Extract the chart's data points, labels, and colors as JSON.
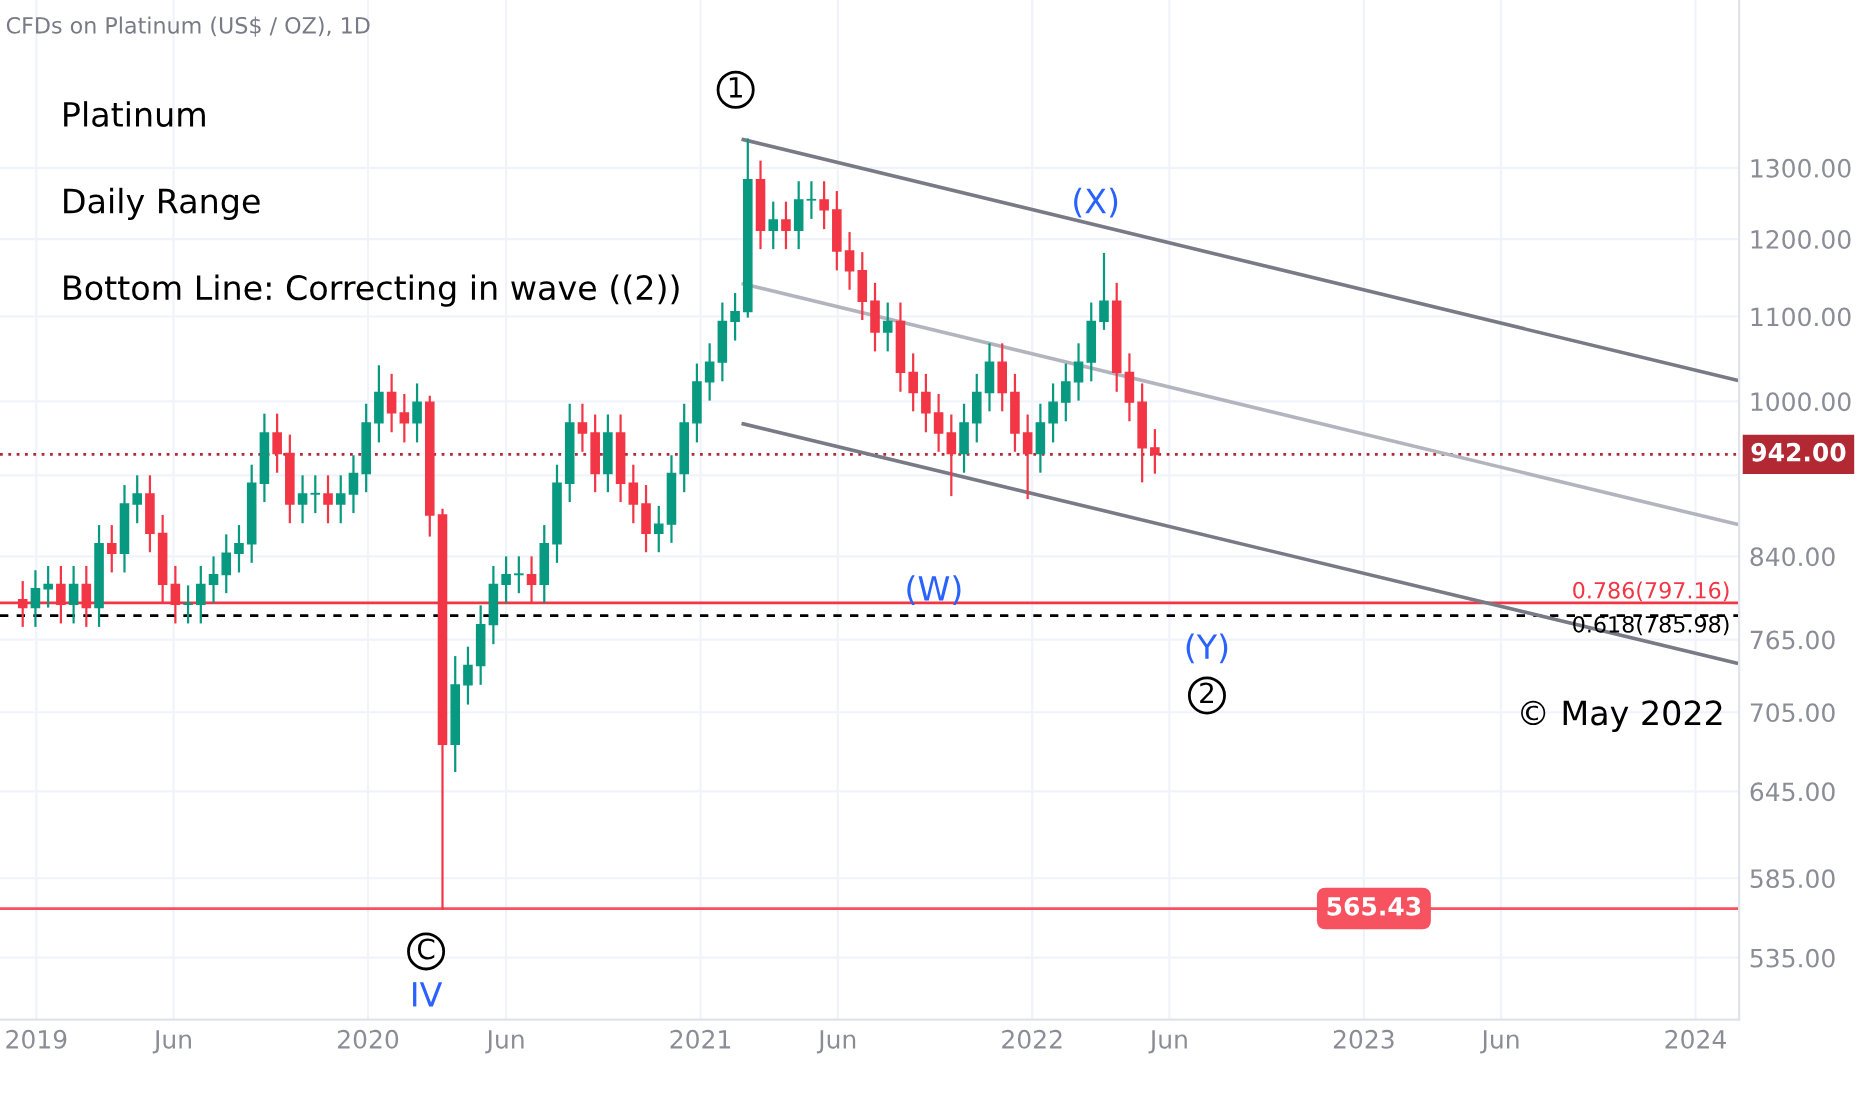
{
  "chart_data": {
    "type": "candlestick",
    "title": "CFDs on Platinum (US$ / OZ), 1D",
    "x": [
      "2018-12-17",
      "2018-12-31",
      "2019-01-14",
      "2019-01-28",
      "2019-02-11",
      "2019-02-25",
      "2019-03-11",
      "2019-03-25",
      "2019-04-08",
      "2019-04-22",
      "2019-05-06",
      "2019-05-20",
      "2019-06-03",
      "2019-06-17",
      "2019-07-01",
      "2019-07-15",
      "2019-07-29",
      "2019-08-12",
      "2019-08-26",
      "2019-09-09",
      "2019-09-23",
      "2019-10-07",
      "2019-10-21",
      "2019-11-04",
      "2019-11-18",
      "2019-12-02",
      "2019-12-16",
      "2019-12-30",
      "2020-01-13",
      "2020-01-27",
      "2020-02-10",
      "2020-02-24",
      "2020-03-09",
      "2020-03-23",
      "2020-04-06",
      "2020-04-20",
      "2020-05-04",
      "2020-05-18",
      "2020-06-01",
      "2020-06-15",
      "2020-06-29",
      "2020-07-13",
      "2020-07-27",
      "2020-08-10",
      "2020-08-24",
      "2020-09-07",
      "2020-09-21",
      "2020-10-05",
      "2020-10-19",
      "2020-11-02",
      "2020-11-16",
      "2020-11-30",
      "2020-12-14",
      "2020-12-28",
      "2021-01-11",
      "2021-01-25",
      "2021-02-08",
      "2021-02-22",
      "2021-03-08",
      "2021-03-22",
      "2021-04-05",
      "2021-04-19",
      "2021-05-03",
      "2021-05-17",
      "2021-05-31",
      "2021-06-14",
      "2021-06-28",
      "2021-07-12",
      "2021-07-26",
      "2021-08-09",
      "2021-08-23",
      "2021-09-06",
      "2021-09-20",
      "2021-10-04",
      "2021-10-18",
      "2021-11-01",
      "2021-11-15",
      "2021-11-29",
      "2021-12-13",
      "2021-12-27",
      "2022-01-10",
      "2022-01-24",
      "2022-02-07",
      "2022-02-21",
      "2022-03-07",
      "2022-03-21",
      "2022-04-04",
      "2022-04-18",
      "2022-05-02",
      "2022-05-16"
    ],
    "ohlc": [
      [
        800,
        816,
        777,
        793
      ],
      [
        793,
        826,
        777,
        810
      ],
      [
        810,
        830,
        794,
        814
      ],
      [
        814,
        830,
        780,
        796
      ],
      [
        796,
        830,
        780,
        814
      ],
      [
        814,
        830,
        777,
        793
      ],
      [
        793,
        869,
        777,
        852
      ],
      [
        852,
        869,
        826,
        843
      ],
      [
        843,
        909,
        826,
        891
      ],
      [
        891,
        919,
        873,
        901
      ],
      [
        901,
        919,
        845,
        862
      ],
      [
        862,
        879,
        798,
        814
      ],
      [
        814,
        830,
        780,
        796
      ],
      [
        796,
        812,
        780,
        796
      ],
      [
        796,
        830,
        780,
        814
      ],
      [
        814,
        839,
        798,
        823
      ],
      [
        823,
        860,
        807,
        843
      ],
      [
        843,
        869,
        826,
        852
      ],
      [
        852,
        930,
        835,
        912
      ],
      [
        912,
        985,
        894,
        965
      ],
      [
        965,
        985,
        924,
        943
      ],
      [
        943,
        962,
        873,
        891
      ],
      [
        891,
        919,
        873,
        901
      ],
      [
        901,
        919,
        883,
        901
      ],
      [
        901,
        919,
        873,
        891
      ],
      [
        891,
        919,
        873,
        901
      ],
      [
        901,
        940,
        883,
        922
      ],
      [
        922,
        996,
        904,
        976
      ],
      [
        976,
        1040,
        956,
        1010
      ],
      [
        1010,
        1030,
        967,
        987
      ],
      [
        987,
        1007,
        956,
        976
      ],
      [
        976,
        1019,
        956,
        999
      ],
      [
        999,
        1005,
        860,
        880
      ],
      [
        880,
        885,
        565.43,
        680
      ],
      [
        680,
        750,
        660,
        727
      ],
      [
        727,
        758,
        712,
        743
      ],
      [
        743,
        794,
        728,
        778
      ],
      [
        778,
        830,
        762,
        814
      ],
      [
        814,
        839,
        798,
        823
      ],
      [
        823,
        839,
        807,
        823
      ],
      [
        823,
        839,
        798,
        814
      ],
      [
        814,
        869,
        798,
        852
      ],
      [
        852,
        930,
        835,
        912
      ],
      [
        912,
        996,
        894,
        976
      ],
      [
        976,
        996,
        946,
        965
      ],
      [
        965,
        984,
        904,
        922
      ],
      [
        922,
        984,
        904,
        965
      ],
      [
        965,
        984,
        894,
        912
      ],
      [
        912,
        930,
        873,
        891
      ],
      [
        891,
        909,
        845,
        862
      ],
      [
        862,
        888,
        845,
        871
      ],
      [
        871,
        940,
        854,
        922
      ],
      [
        922,
        996,
        904,
        976
      ],
      [
        976,
        1042,
        956,
        1022
      ],
      [
        1022,
        1066,
        1002,
        1045
      ],
      [
        1045,
        1116,
        1024,
        1094
      ],
      [
        1094,
        1128,
        1072,
        1106
      ],
      [
        1106,
        1342,
        1100,
        1283
      ],
      [
        1283,
        1309,
        1188,
        1212
      ],
      [
        1212,
        1250,
        1188,
        1226
      ],
      [
        1226,
        1250,
        1188,
        1212
      ],
      [
        1212,
        1279,
        1188,
        1254
      ],
      [
        1254,
        1279,
        1229,
        1254
      ],
      [
        1254,
        1279,
        1215,
        1240
      ],
      [
        1240,
        1265,
        1160,
        1184
      ],
      [
        1184,
        1208,
        1135,
        1158
      ],
      [
        1158,
        1181,
        1097,
        1119
      ],
      [
        1119,
        1141,
        1059,
        1081
      ],
      [
        1081,
        1116,
        1059,
        1094
      ],
      [
        1094,
        1116,
        1012,
        1033
      ],
      [
        1033,
        1054,
        990,
        1010
      ],
      [
        1010,
        1030,
        967,
        987
      ],
      [
        987,
        1007,
        946,
        965
      ],
      [
        965,
        984,
        900,
        943
      ],
      [
        943,
        996,
        924,
        976
      ],
      [
        976,
        1030,
        956,
        1010
      ],
      [
        1010,
        1066,
        990,
        1045
      ],
      [
        1045,
        1066,
        990,
        1010
      ],
      [
        1010,
        1030,
        946,
        965
      ],
      [
        965,
        984,
        897,
        943
      ],
      [
        943,
        996,
        924,
        976
      ],
      [
        976,
        1019,
        956,
        999
      ],
      [
        999,
        1042,
        979,
        1022
      ],
      [
        1022,
        1066,
        1002,
        1045
      ],
      [
        1045,
        1116,
        1024,
        1094
      ],
      [
        1094,
        1180,
        1085,
        1119
      ],
      [
        1119,
        1141,
        1012,
        1033
      ],
      [
        1033,
        1054,
        979,
        999
      ],
      [
        999,
        1019,
        914,
        949
      ],
      [
        949,
        968,
        923,
        942
      ]
    ],
    "colors": [
      "#f23645",
      "#089981",
      "#089981",
      "#f23645",
      "#089981",
      "#f23645",
      "#089981",
      "#f23645",
      "#089981",
      "#089981",
      "#f23645",
      "#f23645",
      "#f23645",
      "#089981",
      "#089981",
      "#089981",
      "#089981",
      "#089981",
      "#089981",
      "#089981",
      "#f23645",
      "#f23645",
      "#089981",
      "#089981",
      "#f23645",
      "#089981",
      "#089981",
      "#089981",
      "#089981",
      "#f23645",
      "#f23645",
      "#089981",
      "#f23645",
      "#f23645",
      "#089981",
      "#089981",
      "#089981",
      "#089981",
      "#089981",
      "#089981",
      "#f23645",
      "#089981",
      "#089981",
      "#089981",
      "#f23645",
      "#f23645",
      "#089981",
      "#f23645",
      "#f23645",
      "#f23645",
      "#089981",
      "#089981",
      "#089981",
      "#089981",
      "#089981",
      "#089981",
      "#089981",
      "#089981",
      "#f23645",
      "#089981",
      "#f23645",
      "#089981",
      "#089981",
      "#f23645",
      "#f23645",
      "#f23645",
      "#f23645",
      "#f23645",
      "#089981",
      "#f23645",
      "#f23645",
      "#f23645",
      "#f23645",
      "#f23645",
      "#089981",
      "#089981",
      "#089981",
      "#f23645",
      "#f23645",
      "#f23645",
      "#089981",
      "#089981",
      "#089981",
      "#089981",
      "#089981",
      "#089981",
      "#f23645",
      "#f23645",
      "#f23645",
      "#f23645"
    ],
    "series": [
      {
        "type": "line",
        "color": "#787b86",
        "x": [
          "2021-02-17",
          "2024-02-15"
        ],
        "values": [
          1342,
          1024
        ]
      },
      {
        "type": "line",
        "color": "#b2b5be",
        "x": [
          "2021-02-17",
          "2024-02-15"
        ],
        "values": [
          1141,
          871
        ]
      },
      {
        "type": "line",
        "color": "#787b86",
        "x": [
          "2021-02-17",
          "2024-02-15"
        ],
        "values": [
          975,
          745
        ]
      }
    ],
    "ref_lines": [
      {
        "axis": "y",
        "value": 565.43,
        "label": "565.43",
        "color": "#f7525f"
      },
      {
        "axis": "y",
        "value": 797.16,
        "label": "0.786(797.16)",
        "color": "#f23645"
      },
      {
        "axis": "y",
        "value": 785.98,
        "label": "0.618(785.98)",
        "color": "#000000",
        "line_style": "dashed"
      },
      {
        "axis": "y",
        "value": 942,
        "label": "942.00",
        "color": "#b22833",
        "line_style": "dotted"
      }
    ],
    "annotations": [
      "Platinum",
      "Daily Range",
      "Bottom Line: Correcting in wave ((2))",
      "© May 2022",
      "1",
      "(X)",
      "(W)",
      "(Y)",
      "2",
      "C",
      "IV"
    ],
    "log": true,
    "ylim": [
      499,
      1570
    ],
    "yticks": [
      {
        "value": 535,
        "label": "535.00"
      },
      {
        "value": 585,
        "label": "585.00"
      },
      {
        "value": 645,
        "label": "645.00"
      },
      {
        "value": 705,
        "label": "705.00"
      },
      {
        "value": 765,
        "label": "765.00"
      },
      {
        "value": 840,
        "label": "840.00"
      },
      {
        "value": 920,
        "label": null
      },
      {
        "value": 1000,
        "label": "1000.00"
      },
      {
        "value": 1100,
        "label": "1100.00"
      },
      {
        "value": 1200,
        "label": "1200.00"
      },
      {
        "value": 1300,
        "label": "1300.00"
      }
    ],
    "xlim": [
      "2018-11-22",
      "2024-02-18"
    ],
    "xticks": [
      {
        "value": "2019-01-01",
        "label": "2019"
      },
      {
        "value": "2019-06-01",
        "label": "Jun"
      },
      {
        "value": "2020-01-01",
        "label": "2020"
      },
      {
        "value": "2020-06-01",
        "label": "Jun"
      },
      {
        "value": "2021-01-01",
        "label": "2021"
      },
      {
        "value": "2021-06-01",
        "label": "Jun"
      },
      {
        "value": "2022-01-01",
        "label": "2022"
      },
      {
        "value": "2022-06-01",
        "label": "Jun"
      },
      {
        "value": "2023-01-01",
        "label": "2023"
      },
      {
        "value": "2023-06-01",
        "label": "Jun"
      },
      {
        "value": "2024-01-01",
        "label": "2024"
      }
    ],
    "grid": true
  }
}
